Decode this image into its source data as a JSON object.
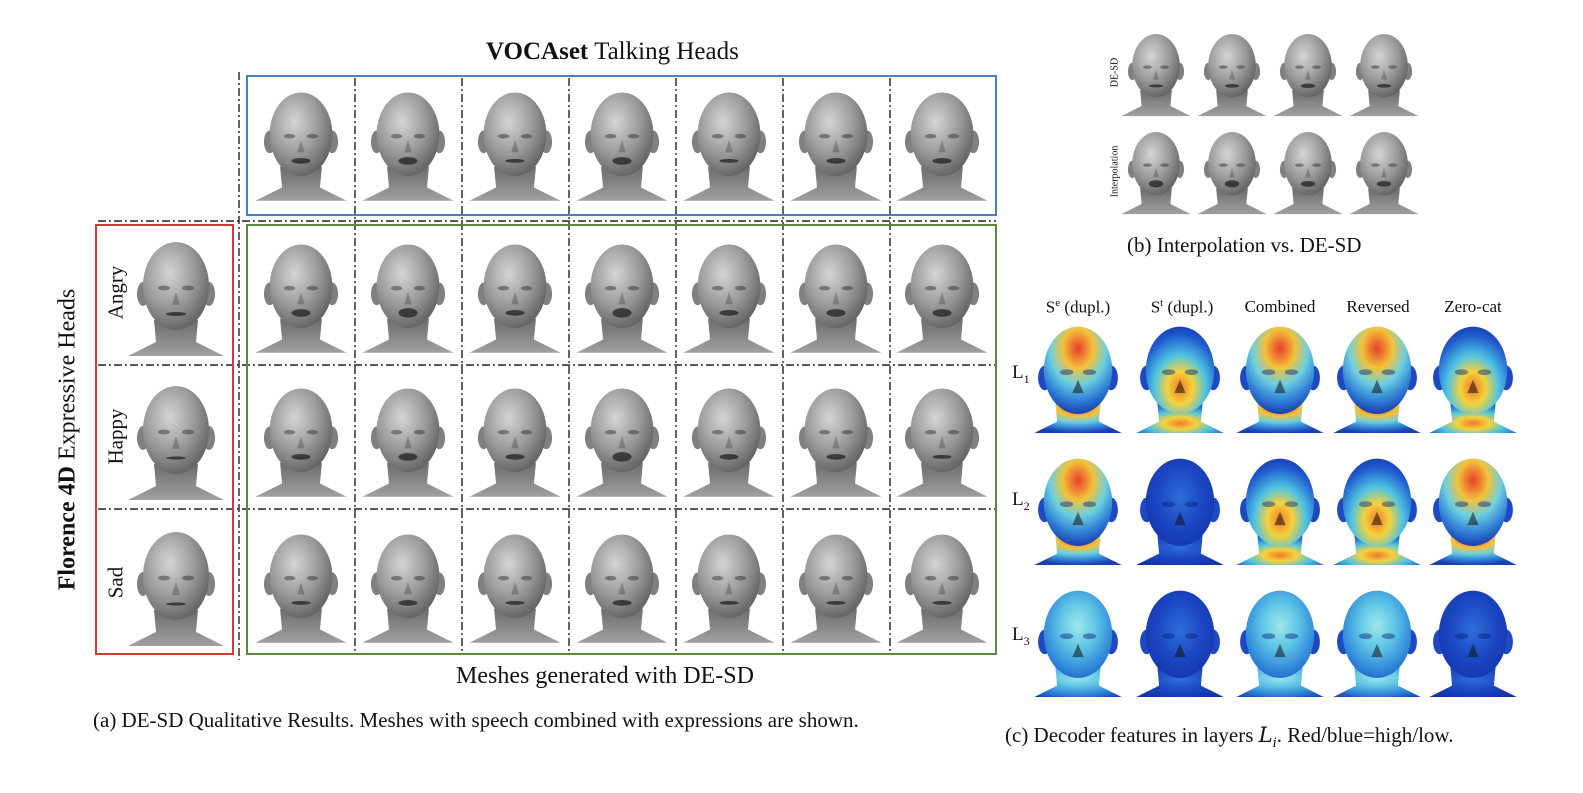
{
  "panel_a": {
    "title_bold": "VOCAset",
    "title_rest": " Talking Heads",
    "side_title_pre": "Florence ",
    "side_title_bold": "4D",
    "side_title_post": " Expressive Heads",
    "row_labels": [
      "Angry",
      "Happy",
      "Sad"
    ],
    "bottom_label": "Meshes generated with DE-SD",
    "caption": "(a) DE-SD Qualitative Results. Meshes with speech combined with expressions are shown.",
    "colors": {
      "blue_box": "#4a7fc1",
      "green_box": "#5a8a3e",
      "red_box": "#d23a3a"
    }
  },
  "panel_b": {
    "row_labels": [
      "DE-SD",
      "Interpolation"
    ],
    "caption": "(b) Interpolation vs. DE-SD"
  },
  "panel_c": {
    "col_heads": [
      {
        "base": "S",
        "sup": "e",
        "rest": " (dupl.)"
      },
      {
        "base": "S",
        "sup": "t",
        "rest": " (dupl.)"
      },
      {
        "base": "Combined",
        "sup": "",
        "rest": ""
      },
      {
        "base": "Reversed",
        "sup": "",
        "rest": ""
      },
      {
        "base": "Zero-cat",
        "sup": "",
        "rest": ""
      }
    ],
    "layer_labels": [
      {
        "base": "L",
        "sub": "1"
      },
      {
        "base": "L",
        "sub": "2"
      },
      {
        "base": "L",
        "sub": "3"
      }
    ],
    "caption_pre": "(c) Decoder features in layers ",
    "caption_math": "L",
    "caption_math_sub": "i",
    "caption_post": ". Red/blue=high/low."
  }
}
